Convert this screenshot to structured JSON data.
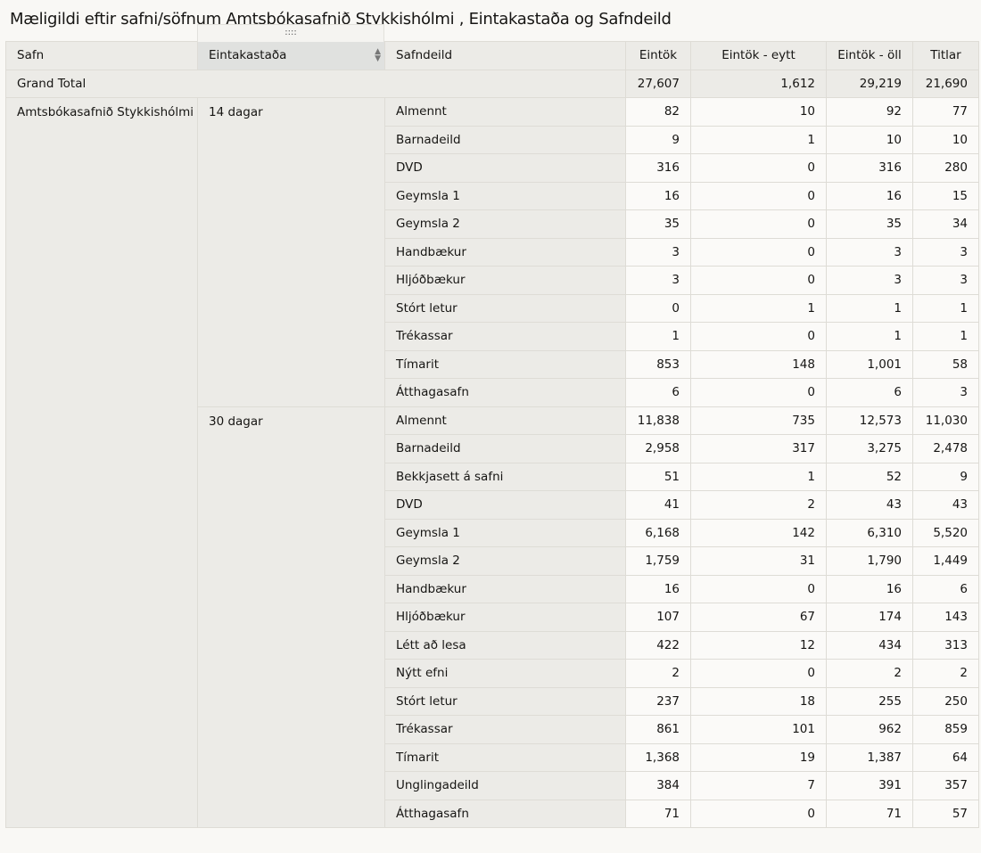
{
  "title": "Mæligildi eftir safni/söfnum Amtsbókasafnið Stykkishólmi , Eintakastaða og Safndeild",
  "drag_handle": "::::",
  "headers": [
    "Safn",
    "Eintakastaða",
    "Safndeild",
    "Eintök",
    "Eintök - eytt",
    "Eintök - öll",
    "Titlar"
  ],
  "grand_total": {
    "label": "Grand Total",
    "values": [
      "27,607",
      "1,612",
      "29,219",
      "21,690"
    ]
  },
  "safn": "Amtsbókasafnið Stykkishólmi",
  "groups": [
    {
      "label": "14 dagar",
      "rows": [
        {
          "name": "Almennt",
          "values": [
            "82",
            "10",
            "92",
            "77"
          ]
        },
        {
          "name": "Barnadeild",
          "values": [
            "9",
            "1",
            "10",
            "10"
          ]
        },
        {
          "name": "DVD",
          "values": [
            "316",
            "0",
            "316",
            "280"
          ]
        },
        {
          "name": "Geymsla 1",
          "values": [
            "16",
            "0",
            "16",
            "15"
          ]
        },
        {
          "name": "Geymsla 2",
          "values": [
            "35",
            "0",
            "35",
            "34"
          ]
        },
        {
          "name": "Handbækur",
          "values": [
            "3",
            "0",
            "3",
            "3"
          ]
        },
        {
          "name": "Hljóðbækur",
          "values": [
            "3",
            "0",
            "3",
            "3"
          ]
        },
        {
          "name": "Stórt letur",
          "values": [
            "0",
            "1",
            "1",
            "1"
          ]
        },
        {
          "name": "Trékassar",
          "values": [
            "1",
            "0",
            "1",
            "1"
          ]
        },
        {
          "name": "Tímarit",
          "values": [
            "853",
            "148",
            "1,001",
            "58"
          ]
        },
        {
          "name": "Átthagasafn",
          "values": [
            "6",
            "0",
            "6",
            "3"
          ]
        }
      ]
    },
    {
      "label": "30 dagar",
      "rows": [
        {
          "name": "Almennt",
          "values": [
            "11,838",
            "735",
            "12,573",
            "11,030"
          ]
        },
        {
          "name": "Barnadeild",
          "values": [
            "2,958",
            "317",
            "3,275",
            "2,478"
          ]
        },
        {
          "name": "Bekkjasett á safni",
          "values": [
            "51",
            "1",
            "52",
            "9"
          ]
        },
        {
          "name": "DVD",
          "values": [
            "41",
            "2",
            "43",
            "43"
          ]
        },
        {
          "name": "Geymsla 1",
          "values": [
            "6,168",
            "142",
            "6,310",
            "5,520"
          ]
        },
        {
          "name": "Geymsla 2",
          "values": [
            "1,759",
            "31",
            "1,790",
            "1,449"
          ]
        },
        {
          "name": "Handbækur",
          "values": [
            "16",
            "0",
            "16",
            "6"
          ]
        },
        {
          "name": "Hljóðbækur",
          "values": [
            "107",
            "67",
            "174",
            "143"
          ]
        },
        {
          "name": "Létt að lesa",
          "values": [
            "422",
            "12",
            "434",
            "313"
          ]
        },
        {
          "name": "Nýtt efni",
          "values": [
            "2",
            "0",
            "2",
            "2"
          ]
        },
        {
          "name": "Stórt letur",
          "values": [
            "237",
            "18",
            "255",
            "250"
          ]
        },
        {
          "name": "Trékassar",
          "values": [
            "861",
            "101",
            "962",
            "859"
          ]
        },
        {
          "name": "Tímarit",
          "values": [
            "1,368",
            "19",
            "1,387",
            "64"
          ]
        },
        {
          "name": "Unglingadeild",
          "values": [
            "384",
            "7",
            "391",
            "357"
          ]
        },
        {
          "name": "Átthagasafn",
          "values": [
            "71",
            "0",
            "71",
            "57"
          ]
        }
      ]
    }
  ]
}
